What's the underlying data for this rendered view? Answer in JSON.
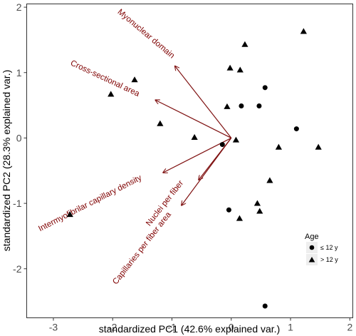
{
  "chart_data": {
    "type": "scatter",
    "xlabel": "standardized PC1 (42.6% explained var.)",
    "ylabel": "standardized PC2 (28.3% explained var.)",
    "xlim": [
      -3.45,
      2.05
    ],
    "ylim": [
      -2.75,
      2.05
    ],
    "x_ticks": [
      -3,
      -2,
      -1,
      0,
      1,
      2
    ],
    "y_ticks": [
      -2,
      -1,
      0,
      1,
      2
    ],
    "grid": false,
    "legend": {
      "title": "Age",
      "placement": "right",
      "entries": [
        {
          "label": "≤ 12 y",
          "marker": "circle"
        },
        {
          "label": "> 12 y",
          "marker": "triangle"
        }
      ]
    },
    "series": [
      {
        "name": "≤ 12 y",
        "marker": "circle",
        "points": [
          {
            "x": 0.57,
            "y": 0.77
          },
          {
            "x": 0.17,
            "y": 0.49
          },
          {
            "x": 0.47,
            "y": 0.49
          },
          {
            "x": 1.1,
            "y": 0.14
          },
          {
            "x": -0.15,
            "y": -0.1
          },
          {
            "x": -0.04,
            "y": -1.1
          },
          {
            "x": 0.57,
            "y": -2.57
          }
        ]
      },
      {
        "name": "> 12 y",
        "marker": "triangle",
        "points": [
          {
            "x": 1.22,
            "y": 1.63
          },
          {
            "x": 0.23,
            "y": 1.43
          },
          {
            "x": -0.02,
            "y": 1.07
          },
          {
            "x": 0.15,
            "y": 1.04
          },
          {
            "x": -1.63,
            "y": 0.89
          },
          {
            "x": -2.03,
            "y": 0.67
          },
          {
            "x": -0.07,
            "y": 0.48
          },
          {
            "x": -1.2,
            "y": 0.22
          },
          {
            "x": -0.62,
            "y": 0.01
          },
          {
            "x": 0.08,
            "y": -0.03
          },
          {
            "x": 0.8,
            "y": -0.14
          },
          {
            "x": 1.47,
            "y": -0.14
          },
          {
            "x": 0.65,
            "y": -0.65
          },
          {
            "x": 0.44,
            "y": -1.0
          },
          {
            "x": 0.48,
            "y": -1.12
          },
          {
            "x": 0.14,
            "y": -1.23
          },
          {
            "x": -2.72,
            "y": -1.17
          }
        ]
      }
    ],
    "vectors": [
      {
        "label": "Myonuclear domain",
        "x": -0.95,
        "y": 1.1
      },
      {
        "label": "Cross-sectional area",
        "x": -1.28,
        "y": 0.58
      },
      {
        "label": "Intermyofibrilar capillary density",
        "x": -1.15,
        "y": -0.53
      },
      {
        "label": "Nuclei per fiber",
        "x": -0.55,
        "y": -0.64
      },
      {
        "label": "Capillaries per fiber area",
        "x": -0.84,
        "y": -1.03
      }
    ],
    "vector_label_color": "#7f0000",
    "vector_color": "#7f1111",
    "point_color": "#000000"
  }
}
